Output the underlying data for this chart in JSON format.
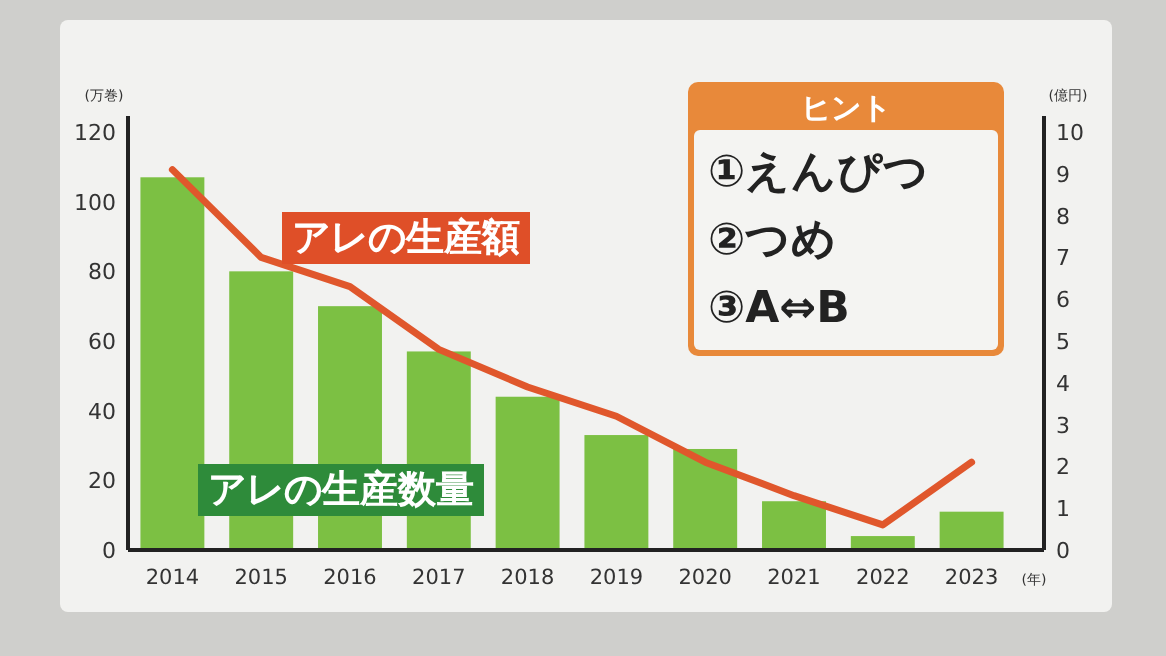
{
  "chart_data": {
    "type": "bar",
    "categories": [
      "2014",
      "2015",
      "2016",
      "2017",
      "2018",
      "2019",
      "2020",
      "2021",
      "2022",
      "2023"
    ],
    "xlabel": "(年)",
    "ylabel": "(万巻)",
    "y2label": "(億円)",
    "series": [
      {
        "name": "アレの生産数量",
        "color": "#7cc043",
        "values": [
          107,
          80,
          70,
          57,
          44,
          33,
          29,
          14,
          4,
          11
        ]
      },
      {
        "name": "アレの生産額",
        "type": "line",
        "axis": "y2",
        "color": "#e0572c",
        "values": [
          9.1,
          7.0,
          6.3,
          4.8,
          3.9,
          3.2,
          2.1,
          1.3,
          0.6,
          2.1
        ]
      }
    ],
    "ylim": [
      0,
      120
    ],
    "yticks": [
      0,
      20,
      40,
      60,
      80,
      100,
      120
    ],
    "y2lim": [
      0,
      10
    ],
    "y2ticks": [
      0,
      1,
      2,
      3,
      4,
      5,
      6,
      7,
      8,
      9,
      10
    ],
    "annotations": [
      "ヒント",
      "①えんぴつ",
      "②つめ",
      "③A⇔B"
    ]
  }
}
